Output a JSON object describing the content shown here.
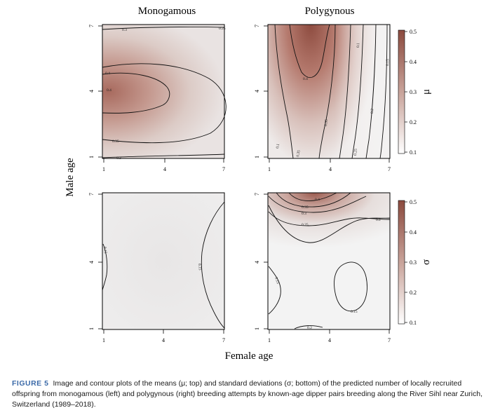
{
  "figure": {
    "col_titles": [
      "Monogamous",
      "Polygynous"
    ],
    "y_label": "Male age",
    "x_label": "Female age",
    "mu_symbol": "μ",
    "sigma_symbol": "σ"
  },
  "chart_data": [
    {
      "type": "heatmap",
      "panel": "monogamous-mu",
      "title": "Monogamous",
      "xlabel": "Female age",
      "ylabel": "Male age",
      "xlim": [
        1,
        7
      ],
      "ylim": [
        1,
        7
      ],
      "xticks": [
        "1",
        "4",
        "7"
      ],
      "yticks": [
        "1",
        "4",
        "7"
      ],
      "contour_levels": [
        "0.25",
        "0.3",
        "0.35",
        "0.4"
      ],
      "peak": {
        "x": 1,
        "y": 4,
        "value": 0.42
      }
    },
    {
      "type": "heatmap",
      "panel": "polygynous-mu",
      "title": "Polygynous",
      "xlabel": "Female age",
      "ylabel": "Male age",
      "xlim": [
        1,
        7
      ],
      "ylim": [
        1,
        7
      ],
      "xticks": [
        "1",
        "4",
        "7"
      ],
      "yticks": [
        "1",
        "4",
        "7"
      ],
      "contour_levels": [
        "0.1",
        "0.15",
        "0.2",
        "0.25",
        "0.3",
        "0.35",
        "0.4"
      ],
      "peak": {
        "x": 3.5,
        "y": 7,
        "value": 0.5
      }
    },
    {
      "type": "heatmap",
      "panel": "monogamous-sigma",
      "xlabel": "Female age",
      "ylabel": "Male age",
      "xlim": [
        1,
        7
      ],
      "ylim": [
        1,
        7
      ],
      "xticks": [
        "1",
        "4",
        "7"
      ],
      "yticks": [
        "1",
        "4",
        "7"
      ],
      "contour_levels": [
        "0.15"
      ],
      "peak": {
        "x": 4,
        "y": 4,
        "value": 0.13
      }
    },
    {
      "type": "heatmap",
      "panel": "polygynous-sigma",
      "xlabel": "Female age",
      "ylabel": "Male age",
      "xlim": [
        1,
        7
      ],
      "ylim": [
        1,
        7
      ],
      "xticks": [
        "1",
        "4",
        "7"
      ],
      "yticks": [
        "1",
        "4",
        "7"
      ],
      "contour_levels": [
        "0.15",
        "0.2",
        "0.25",
        "0.3",
        "0.35",
        "0.4"
      ],
      "peak": {
        "x": 3.5,
        "y": 7,
        "value": 0.45
      }
    }
  ],
  "colorbars": [
    {
      "name": "μ",
      "ticks": [
        "0.5",
        "0.4",
        "0.3",
        "0.2",
        "0.1"
      ],
      "range": [
        0.1,
        0.5
      ],
      "colors": {
        "high": "#8b4a3e",
        "low": "#ffffff"
      }
    },
    {
      "name": "σ",
      "ticks": [
        "0.5",
        "0.4",
        "0.3",
        "0.2",
        "0.1"
      ],
      "range": [
        0.1,
        0.5
      ],
      "colors": {
        "high": "#8b4a3e",
        "low": "#ffffff"
      }
    }
  ],
  "caption": {
    "label": "FIGURE 5",
    "text": "Image and contour plots of the means (μ; top) and standard deviations (σ; bottom) of the predicted number of locally recruited offspring from monogamous (left) and polygynous (right) breeding attempts by known-age dipper pairs breeding along the River Sihl near Zurich, Switzerland (1989–2018)."
  }
}
